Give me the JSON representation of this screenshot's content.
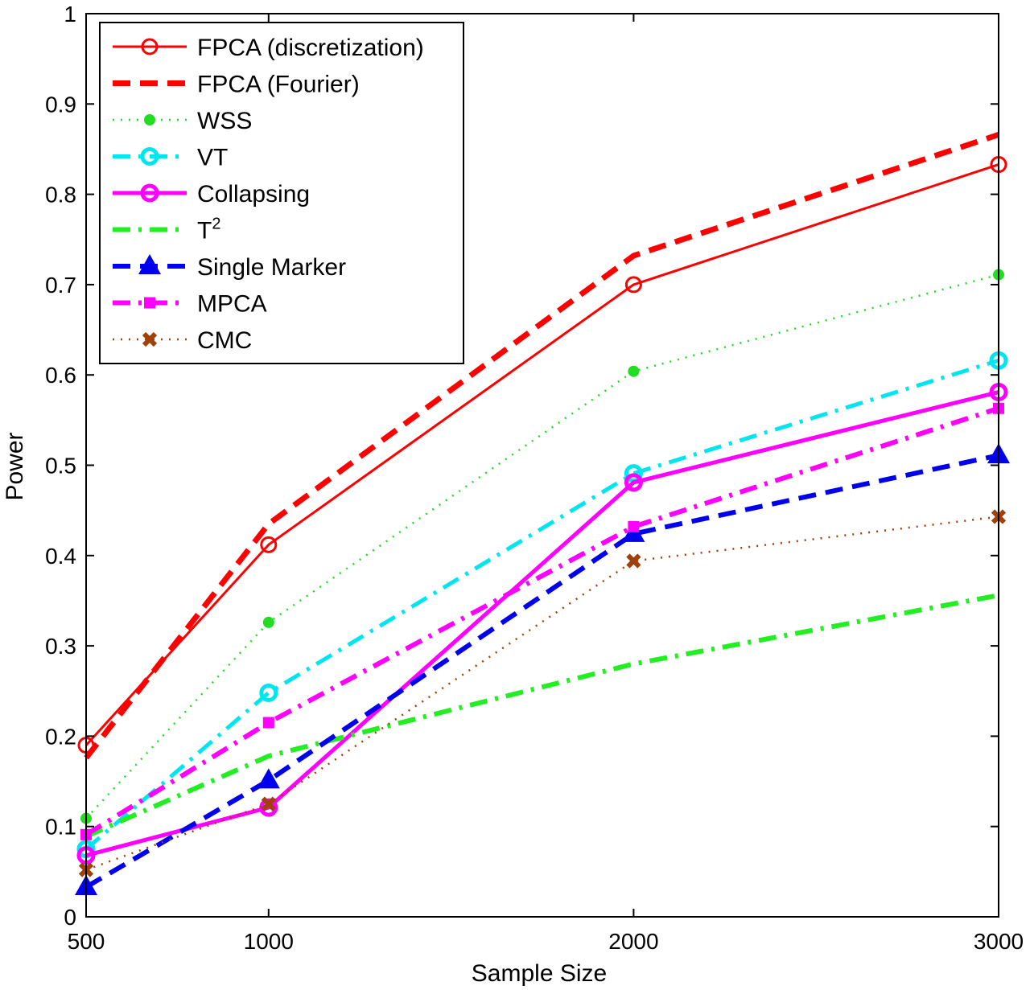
{
  "chart_data": {
    "type": "line",
    "title": "",
    "xlabel": "Sample Size",
    "ylabel": "Power",
    "x": [
      500,
      1000,
      2000,
      3000
    ],
    "xlim": [
      500,
      3000
    ],
    "ylim": [
      0,
      1
    ],
    "xticks": [
      "500",
      "1000",
      "2000",
      "3000"
    ],
    "yticks": [
      "0",
      "0.1",
      "0.2",
      "0.3",
      "0.4",
      "0.5",
      "0.6",
      "0.7",
      "0.8",
      "0.9",
      "1"
    ],
    "grid": false,
    "legend_position": "top-left",
    "series": [
      {
        "name": "FPCA (discretization)",
        "values": [
          0.19,
          0.412,
          0.7,
          0.833
        ],
        "color": "#ff0000",
        "style": "solid",
        "marker": "open-circle"
      },
      {
        "name": "FPCA (Fourier)",
        "values": [
          0.176,
          0.435,
          0.732,
          0.866
        ],
        "color": "#ff0000",
        "style": "dashed",
        "marker": "none"
      },
      {
        "name": "WSS",
        "values": [
          0.109,
          0.326,
          0.604,
          0.711
        ],
        "color": "#22dd22",
        "style": "dotted",
        "marker": "star"
      },
      {
        "name": "VT",
        "values": [
          0.075,
          0.248,
          0.491,
          0.616
        ],
        "color": "#00e5ee",
        "style": "dashdot",
        "marker": "open-circle"
      },
      {
        "name": "Collapsing",
        "values": [
          0.068,
          0.121,
          0.481,
          0.581
        ],
        "color": "#ff00ff",
        "style": "solid",
        "marker": "open-circle"
      },
      {
        "name": "T",
        "sup": "2",
        "values": [
          0.089,
          0.178,
          0.28,
          0.356
        ],
        "color": "#22ee22",
        "style": "dashdot",
        "marker": "none"
      },
      {
        "name": "Single Marker",
        "values": [
          0.033,
          0.151,
          0.424,
          0.511
        ],
        "color": "#0000ee",
        "style": "dashed",
        "marker": "triangle"
      },
      {
        "name": "MPCA",
        "values": [
          0.091,
          0.215,
          0.432,
          0.563
        ],
        "color": "#ff00ff",
        "style": "dashdot",
        "marker": "square"
      },
      {
        "name": "CMC",
        "values": [
          0.052,
          0.125,
          0.394,
          0.443
        ],
        "color": "#a0400a",
        "style": "dotted",
        "marker": "x"
      }
    ]
  }
}
